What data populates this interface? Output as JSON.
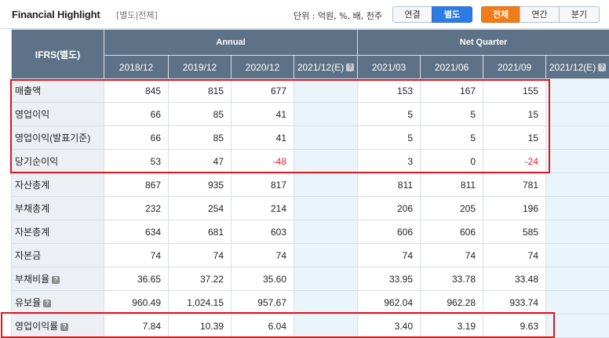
{
  "header": {
    "title": "Financial Highlight",
    "subtitle": "[별도|전체]",
    "unit_label": "단위 : 억원, %, 배, 천주",
    "toggle_consolidation": [
      {
        "label": "연결",
        "active": false
      },
      {
        "label": "별도",
        "active": true
      }
    ],
    "toggle_period": [
      {
        "label": "전체",
        "active": true
      },
      {
        "label": "연간",
        "active": false
      },
      {
        "label": "분기",
        "active": false
      }
    ]
  },
  "table": {
    "row_header": "IFRS(별도)",
    "groups": {
      "annual": "Annual",
      "quarter": "Net Quarter"
    },
    "columns": [
      "2018/12",
      "2019/12",
      "2020/12",
      "2021/12(E)",
      "2021/03",
      "2021/06",
      "2021/09",
      "2021/12(E)"
    ],
    "rows": [
      {
        "label": "매출액",
        "values": [
          "845",
          "815",
          "677",
          "",
          "153",
          "167",
          "155",
          ""
        ]
      },
      {
        "label": "영업이익",
        "values": [
          "66",
          "85",
          "41",
          "",
          "5",
          "5",
          "15",
          ""
        ]
      },
      {
        "label": "영업이익(발표기준)",
        "values": [
          "66",
          "85",
          "41",
          "",
          "5",
          "5",
          "15",
          ""
        ]
      },
      {
        "label": "당기순이익",
        "values": [
          "53",
          "47",
          "-48",
          "",
          "3",
          "0",
          "-24",
          ""
        ]
      },
      {
        "label": "자산총계",
        "values": [
          "867",
          "935",
          "817",
          "",
          "811",
          "811",
          "781",
          ""
        ]
      },
      {
        "label": "부채총계",
        "values": [
          "232",
          "254",
          "214",
          "",
          "206",
          "205",
          "196",
          ""
        ]
      },
      {
        "label": "자본총계",
        "values": [
          "634",
          "681",
          "603",
          "",
          "606",
          "606",
          "585",
          ""
        ]
      },
      {
        "label": "자본금",
        "values": [
          "74",
          "74",
          "74",
          "",
          "74",
          "74",
          "74",
          ""
        ]
      },
      {
        "label": "부채비율",
        "values": [
          "36.65",
          "37.22",
          "35.60",
          "",
          "33.95",
          "33.78",
          "33.48",
          ""
        ]
      },
      {
        "label": "유보율",
        "values": [
          "960.49",
          "1,024.15",
          "957.67",
          "",
          "962.04",
          "962.28",
          "933.74",
          ""
        ]
      },
      {
        "label": "영업이익률",
        "values": [
          "7.84",
          "10.39",
          "6.04",
          "",
          "3.40",
          "3.19",
          "9.63",
          ""
        ]
      }
    ]
  },
  "colors": {
    "header_bg": "#5e7287",
    "highlight": "#e0161f",
    "negative": "#e8232f",
    "active_blue": "#2c7be5",
    "active_orange": "#f07b1a"
  }
}
